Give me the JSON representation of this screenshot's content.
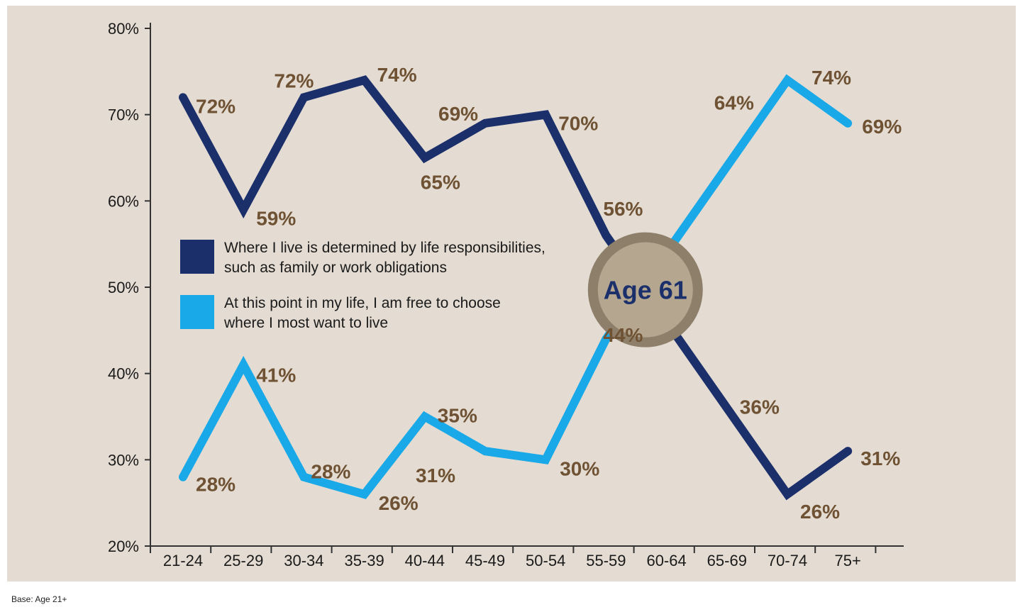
{
  "chart_data": {
    "type": "line",
    "categories": [
      "21-24",
      "25-29",
      "30-34",
      "35-39",
      "40-44",
      "45-49",
      "50-54",
      "55-59",
      "60-64",
      "65-69",
      "70-74",
      "75+"
    ],
    "ylim": [
      20,
      80
    ],
    "y_ticks": [
      "20%",
      "30%",
      "40%",
      "50%",
      "60%",
      "70%",
      "80%"
    ],
    "y_tick_values": [
      20,
      30,
      40,
      50,
      60,
      70,
      80
    ],
    "series": [
      {
        "name": "Where I live is determined by life responsibilities, such as family or work obligations",
        "color": "#1b2f6b",
        "values": [
          72,
          59,
          72,
          74,
          65,
          69,
          70,
          56,
          null,
          36,
          26,
          31
        ],
        "labels": [
          "72%",
          "59%",
          "72%",
          "74%",
          "65%",
          "69%",
          "70%",
          "56%",
          null,
          "36%",
          "26%",
          "31%"
        ]
      },
      {
        "name": "At this point in my life, I am free to choose where I most want to live",
        "color": "#1aa9e8",
        "values": [
          28,
          41,
          28,
          26,
          35,
          31,
          30,
          44,
          null,
          64,
          74,
          69
        ],
        "labels": [
          "28%",
          "41%",
          "28%",
          "26%",
          "35%",
          "31%",
          "30%",
          "44%",
          null,
          "64%",
          "74%",
          "69%"
        ]
      }
    ],
    "legend": {
      "placement": "center-left",
      "lines": [
        [
          "Where I live is determined by life responsibilities,",
          "such as family or work obligations"
        ],
        [
          "At this point in my life, I am free to choose",
          "where I most want to live"
        ]
      ]
    },
    "annotation": {
      "text": "Age 61",
      "fill": "#b5a690",
      "stroke": "#8e7f6a"
    },
    "grid": false
  },
  "footnote": "Base: Age 21+"
}
